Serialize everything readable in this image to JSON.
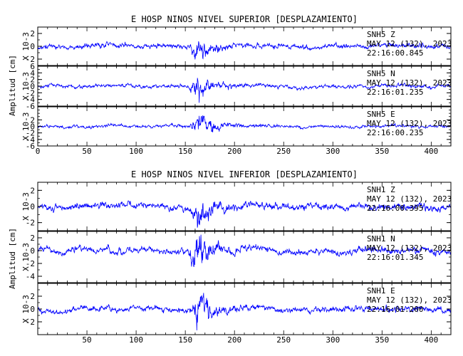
{
  "chart_data": [
    {
      "type": "line",
      "title": "E HOSP NINOS NIVEL SUPERIOR [DESPLAZAMIENTO]",
      "ylabel": "Amplitud [cm]",
      "xlim": [
        0,
        420
      ],
      "x_ticks": [
        "0",
        "50",
        "100",
        "150",
        "200",
        "250",
        "300",
        "350",
        "400"
      ],
      "panels": [
        {
          "scale_label": "X 10-3",
          "ylim": [
            -3,
            3
          ],
          "y_ticks": [
            "2",
            "0",
            "-2"
          ],
          "station": "SNH5   Z",
          "date": "MAY 12 (132), 2023",
          "time": "22:16:00.845",
          "quiet_amplitude": 0.5,
          "peak_amplitude": 2.5,
          "arrival_time_s": 155
        },
        {
          "scale_label": "X 10-3",
          "ylim": [
            -6,
            6
          ],
          "y_ticks": [
            "6",
            "4",
            "2",
            "0",
            "-2",
            "-4",
            "-6"
          ],
          "station": "SNH5   N",
          "date": "MAY 12 (132), 2023",
          "time": "22:16:01.235",
          "quiet_amplitude": 0.7,
          "peak_amplitude": 5,
          "arrival_time_s": 155
        },
        {
          "scale_label": "X 10-3",
          "ylim": [
            -6,
            6
          ],
          "y_ticks": [
            "2",
            "0",
            "-2",
            "-4",
            "-6"
          ],
          "station": "SNH5   E",
          "date": "MAY 12 (132), 2023",
          "time": "22:16:00.235",
          "quiet_amplitude": 0.6,
          "peak_amplitude": 5,
          "arrival_time_s": 155
        }
      ]
    },
    {
      "type": "line",
      "title": "E HOSP NINOS NIVEL INFERIOR [DESPLAZAMIENTO]",
      "ylabel": "Amplitud [cm]",
      "xlim": [
        0,
        420
      ],
      "x_ticks": [
        "50",
        "100",
        "150",
        "200",
        "250",
        "300",
        "350",
        "400"
      ],
      "panels": [
        {
          "scale_label": "X 10-3",
          "ylim": [
            -3,
            3
          ],
          "y_ticks": [
            "2",
            "0",
            "-2"
          ],
          "station": "SNH1   Z",
          "date": "MAY 12 (132), 2023",
          "time": "22:16:00.395",
          "quiet_amplitude": 0.55,
          "peak_amplitude": 2.5,
          "arrival_time_s": 155
        },
        {
          "scale_label": "X 10-3",
          "ylim": [
            -5,
            3
          ],
          "y_ticks": [
            "2",
            "0",
            "-2",
            "-4"
          ],
          "station": "SNH1   N",
          "date": "MAY 12 (132), 2023",
          "time": "22:16:01.345",
          "quiet_amplitude": 0.65,
          "peak_amplitude": 3.8,
          "arrival_time_s": 155
        },
        {
          "scale_label": "X 10-3",
          "ylim": [
            -4,
            4
          ],
          "y_ticks": [
            "2",
            "0",
            "-2"
          ],
          "station": "SNH1   E",
          "date": "MAY 12 (132), 2023",
          "time": "22:16:01.200",
          "quiet_amplitude": 0.6,
          "peak_amplitude": 3.5,
          "arrival_time_s": 155
        }
      ]
    }
  ],
  "colors": {
    "trace": "#0000ff",
    "axes": "#000000",
    "background": "#ffffff"
  }
}
